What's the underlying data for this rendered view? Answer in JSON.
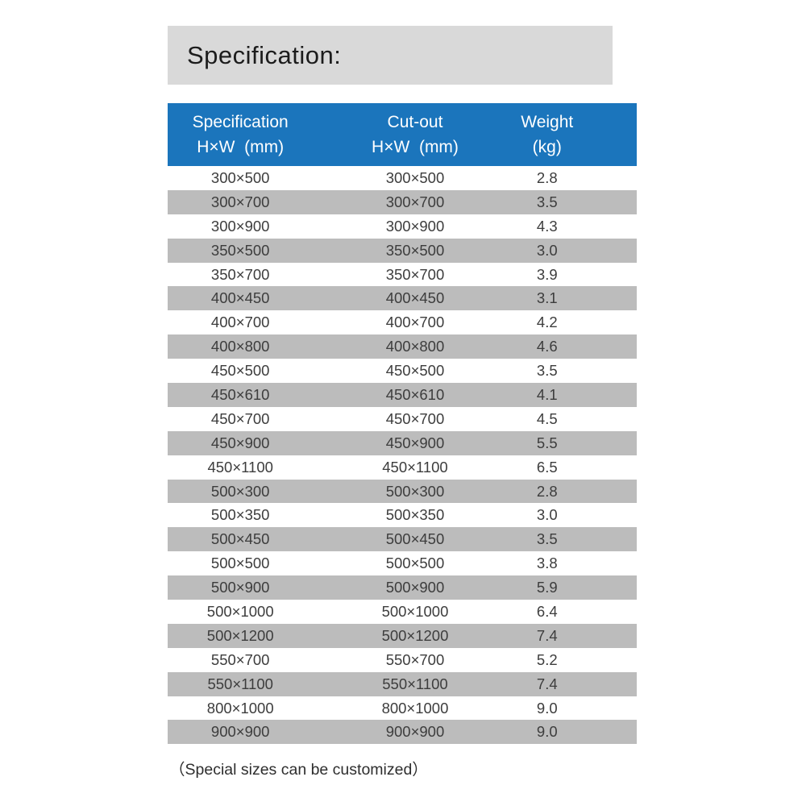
{
  "title": "Specification:",
  "footnote": "（Special sizes can be customized）",
  "colors": {
    "header_bg": "#1b75bc",
    "row_alt_bg": "#bcbcbc",
    "title_bg": "#d9d9d9"
  },
  "table": {
    "headers": [
      {
        "line1": "Specification",
        "line2": "H×W  (mm)"
      },
      {
        "line1": "Cut-out",
        "line2": "H×W  (mm)"
      },
      {
        "line1": "Weight",
        "line2": "(kg)"
      }
    ],
    "rows": [
      {
        "spec": "300×500",
        "cutout": "300×500",
        "weight": "2.8"
      },
      {
        "spec": "300×700",
        "cutout": "300×700",
        "weight": "3.5"
      },
      {
        "spec": "300×900",
        "cutout": "300×900",
        "weight": "4.3"
      },
      {
        "spec": "350×500",
        "cutout": "350×500",
        "weight": "3.0"
      },
      {
        "spec": "350×700",
        "cutout": "350×700",
        "weight": "3.9"
      },
      {
        "spec": "400×450",
        "cutout": "400×450",
        "weight": "3.1"
      },
      {
        "spec": "400×700",
        "cutout": "400×700",
        "weight": "4.2"
      },
      {
        "spec": "400×800",
        "cutout": "400×800",
        "weight": "4.6"
      },
      {
        "spec": "450×500",
        "cutout": "450×500",
        "weight": "3.5"
      },
      {
        "spec": "450×610",
        "cutout": "450×610",
        "weight": "4.1"
      },
      {
        "spec": "450×700",
        "cutout": "450×700",
        "weight": "4.5"
      },
      {
        "spec": "450×900",
        "cutout": "450×900",
        "weight": "5.5"
      },
      {
        "spec": "450×1100",
        "cutout": "450×1100",
        "weight": "6.5"
      },
      {
        "spec": "500×300",
        "cutout": "500×300",
        "weight": "2.8"
      },
      {
        "spec": "500×350",
        "cutout": "500×350",
        "weight": "3.0"
      },
      {
        "spec": "500×450",
        "cutout": "500×450",
        "weight": "3.5"
      },
      {
        "spec": "500×500",
        "cutout": "500×500",
        "weight": "3.8"
      },
      {
        "spec": "500×900",
        "cutout": "500×900",
        "weight": "5.9"
      },
      {
        "spec": "500×1000",
        "cutout": "500×1000",
        "weight": "6.4"
      },
      {
        "spec": "500×1200",
        "cutout": "500×1200",
        "weight": "7.4"
      },
      {
        "spec": "550×700",
        "cutout": "550×700",
        "weight": "5.2"
      },
      {
        "spec": "550×1100",
        "cutout": "550×1100",
        "weight": "7.4"
      },
      {
        "spec": "800×1000",
        "cutout": "800×1000",
        "weight": "9.0"
      },
      {
        "spec": "900×900",
        "cutout": "900×900",
        "weight": "9.0"
      }
    ]
  }
}
